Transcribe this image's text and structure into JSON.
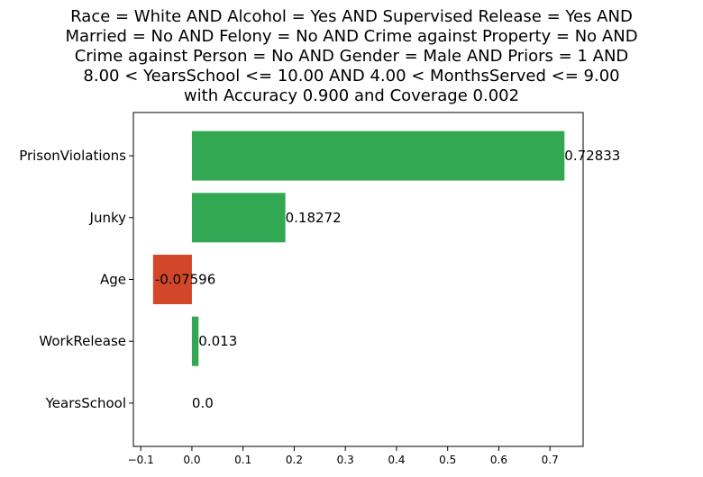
{
  "chart_data": {
    "type": "bar",
    "orientation": "horizontal",
    "title_lines": [
      "Race = White AND Alcohol = Yes AND Supervised Release = Yes AND",
      "Married = No AND Felony = No AND Crime against Property = No AND",
      "Crime against Person = No AND Gender = Male AND Priors = 1 AND",
      "8.00 < YearsSchool <= 10.00 AND 4.00 < MonthsServed <= 9.00",
      "with Accuracy 0.900 and Coverage 0.002"
    ],
    "categories": [
      "PrisonViolations",
      "Junky",
      "Age",
      "WorkRelease",
      "YearsSchool"
    ],
    "values": [
      0.72833,
      0.18272,
      -0.07596,
      0.013,
      0.0
    ],
    "value_labels": [
      "0.72833",
      "0.18272",
      "-0.07596",
      "0.013",
      "0.0"
    ],
    "xticks": [
      -0.1,
      0.0,
      0.1,
      0.2,
      0.3,
      0.4,
      0.5,
      0.6,
      0.7
    ],
    "xtick_labels": [
      "−0.1",
      "0.0",
      "0.1",
      "0.2",
      "0.3",
      "0.4",
      "0.5",
      "0.6",
      "0.7"
    ],
    "xlim": [
      -0.1144,
      0.7648
    ],
    "xlabel": "",
    "ylabel": "",
    "grid": false,
    "colors": {
      "positive": "#33a853",
      "negative": "#d2472a"
    }
  }
}
